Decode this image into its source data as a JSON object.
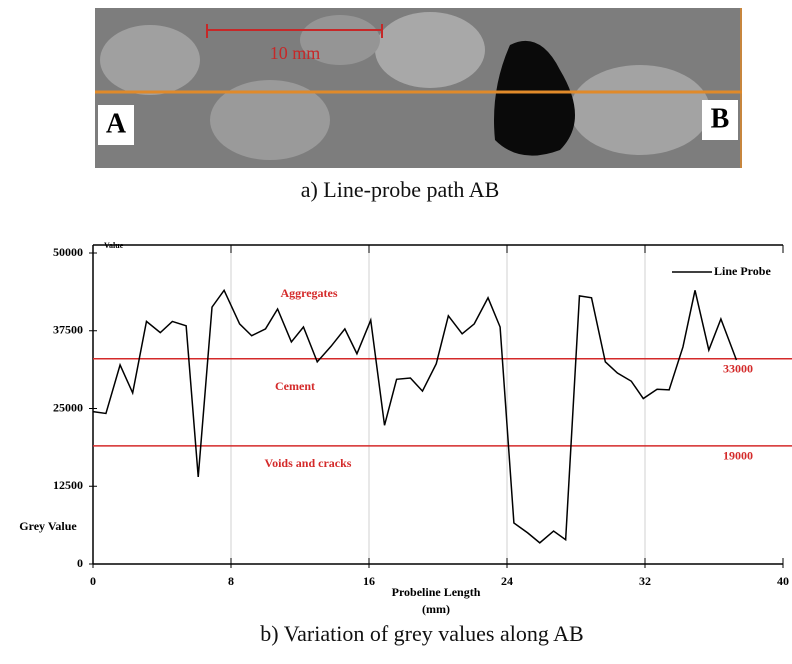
{
  "figure_a": {
    "caption": "a) Line-probe path AB",
    "label_a": "A",
    "label_b": "B",
    "scale_bar": "10 mm"
  },
  "chart_data": {
    "type": "line",
    "caption": "b) Variation of grey values along AB",
    "x_label": "Probeline Length",
    "x_unit": "(mm)",
    "y_label": "Grey Value",
    "y_axis_title": "Value",
    "xlim": [
      0,
      40
    ],
    "xticks": [
      0,
      8,
      16,
      24,
      32,
      40
    ],
    "ylim": [
      0,
      50000
    ],
    "yticks": [
      0,
      12500,
      25000,
      37500,
      50000
    ],
    "grid": true,
    "legend": "top-right",
    "x": [
      0,
      0.75,
      1.57,
      2.3,
      3.1,
      3.9,
      4.6,
      5.4,
      6.1,
      6.9,
      7.6,
      8.5,
      9.2,
      10,
      10.7,
      11.5,
      12.2,
      13,
      13.8,
      14.6,
      15.3,
      16.1,
      16.9,
      17.6,
      18.4,
      19.1,
      19.9,
      20.6,
      21.4,
      22.1,
      22.9,
      23.6,
      24.4,
      25.2,
      25.9,
      26.7,
      27.4,
      28.2,
      28.9,
      29.7,
      30.4,
      31.2,
      31.9,
      32.7,
      33.4,
      34.2,
      34.9,
      35.7,
      36.4,
      37.3
    ],
    "series": [
      {
        "name": "Line Probe",
        "color": "#000000",
        "values": [
          24500,
          24200,
          32000,
          27500,
          39000,
          37200,
          39000,
          38300,
          14000,
          41300,
          44000,
          38600,
          36700,
          37800,
          41000,
          35700,
          38100,
          32500,
          35000,
          37800,
          33800,
          39200,
          22300,
          29700,
          29900,
          27800,
          32200,
          39900,
          37000,
          38600,
          42800,
          38100,
          6600,
          5000,
          3400,
          5300,
          3900,
          43100,
          42800,
          32500,
          30700,
          29400,
          26600,
          28100,
          28000,
          34900,
          44000,
          34400,
          39400,
          32800
        ]
      }
    ],
    "thresholds": [
      33000,
      19000
    ],
    "threshold_color": "#d42a2a",
    "regions": [
      "Aggregates",
      "Cement",
      "Voids and cracks"
    ]
  }
}
